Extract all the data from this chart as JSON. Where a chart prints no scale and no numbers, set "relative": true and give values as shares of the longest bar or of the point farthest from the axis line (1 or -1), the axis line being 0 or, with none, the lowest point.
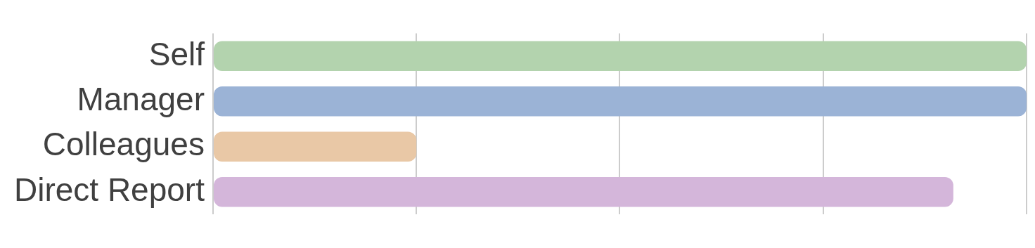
{
  "chart_data": {
    "type": "bar",
    "orientation": "horizontal",
    "relative": true,
    "grid": "x",
    "categories": [
      "Self",
      "Manager",
      "Colleagues",
      "Direct Report"
    ],
    "values": [
      1,
      1,
      0.25,
      0.91
    ],
    "colors": [
      "#b3d3ae",
      "#9bb3d6",
      "#e9c8a6",
      "#d4b6da"
    ]
  }
}
